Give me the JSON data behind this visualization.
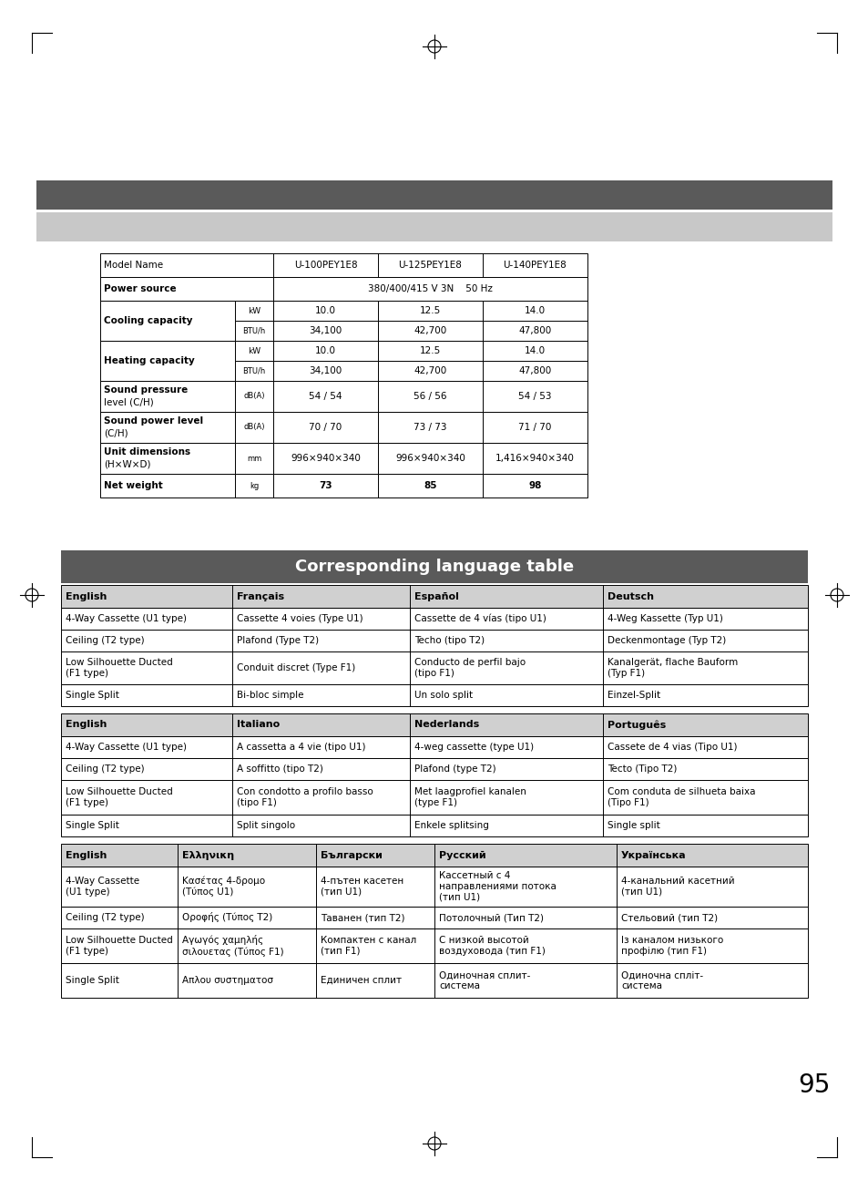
{
  "page_bg": "#ffffff",
  "page_num": "95",
  "dark_banner_color": "#5a5a5a",
  "light_banner_color": "#c8c8c8",
  "table_header_bg": "#d0d0d0",
  "title_banner": "Corresponding language table",
  "lang_table1": {
    "headers": [
      "English",
      "Français",
      "Español",
      "Deutsch"
    ],
    "rows": [
      [
        "4-Way Cassette (U1 type)",
        "Cassette 4 voies (Type U1)",
        "Cassette de 4 vías (tipo U1)",
        "4-Weg Kassette (Typ U1)"
      ],
      [
        "Ceiling (T2 type)",
        "Plafond (Type T2)",
        "Techo (tipo T2)",
        "Deckenmontage (Typ T2)"
      ],
      [
        "Low Silhouette Ducted\n(F1 type)",
        "Conduit discret (Type F1)",
        "Conducto de perfil bajo\n(tipo F1)",
        "Kanalgerät, flache Bauform\n(Typ F1)"
      ],
      [
        "Single Split",
        "Bi-bloc simple",
        "Un solo split",
        "Einzel-Split"
      ]
    ]
  },
  "lang_table2": {
    "headers": [
      "English",
      "Italiano",
      "Nederlands",
      "Português"
    ],
    "rows": [
      [
        "4-Way Cassette (U1 type)",
        "A cassetta a 4 vie (tipo U1)",
        "4-weg cassette (type U1)",
        "Cassete de 4 vias (Tipo U1)"
      ],
      [
        "Ceiling (T2 type)",
        "A soffitto (tipo T2)",
        "Plafond (type T2)",
        "Tecto (Tipo T2)"
      ],
      [
        "Low Silhouette Ducted\n(F1 type)",
        "Con condotto a profilo basso\n(tipo F1)",
        "Met laagprofiel kanalen\n(type F1)",
        "Com conduta de silhueta baixa\n(Tipo F1)"
      ],
      [
        "Single Split",
        "Split singolo",
        "Enkele splitsing",
        "Single split"
      ]
    ]
  },
  "lang_table3": {
    "headers": [
      "English",
      "Ελληνικη",
      "Български",
      "Русский",
      "Українська"
    ],
    "rows": [
      [
        "4-Way Cassette\n(U1 type)",
        "Κασέτας 4-δρομο\n(Τύπος U1)",
        "4-пътен касетен\n(тип U1)",
        "Кассетный с 4\nнаправлениями потока\n(тип U1)",
        "4-канальний касетний\n(тип U1)"
      ],
      [
        "Ceiling (T2 type)",
        "Οροφής (Τύπος T2)",
        "Таванен (тип T2)",
        "Потолочный (Тип T2)",
        "Стельовий (тип T2)"
      ],
      [
        "Low Silhouette Ducted\n(F1 type)",
        "Αγωγός χαμηλής\nσιλουετας (Τύπος F1)",
        "Компактен с канал\n(тип F1)",
        "С низкой высотой\nвоздуховода (тип F1)",
        "Із каналом низького\nпрофілю (тип F1)"
      ],
      [
        "Single Split",
        "Απλου συστηματοσ",
        "Единичен сплит",
        "Одиночная сплит-\nсистема",
        "Одиночна спліт-\nсистема"
      ]
    ]
  }
}
